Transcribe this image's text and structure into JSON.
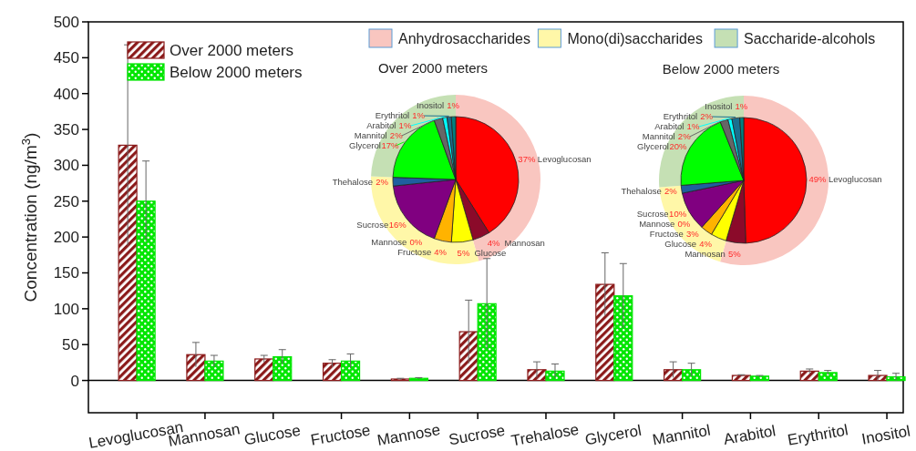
{
  "chart_data": [
    {
      "type": "bar",
      "ylabel": "Concentration (ng/m$^{3}$)",
      "categories": [
        "Levoglucosan",
        "Mannosan",
        "Glucose",
        "Fructose",
        "Mannose",
        "Sucrose",
        "Trehalose",
        "Glycerol",
        "Mannitol",
        "Arabitol",
        "Erythritol",
        "Inositol"
      ],
      "series": [
        {
          "name": "Over 2000 meters",
          "color": "#8b1a1a",
          "values": [
            328,
            36,
            30,
            24,
            2,
            68,
            15,
            134,
            15,
            7,
            13,
            7
          ],
          "errors": [
            140,
            17,
            5,
            5,
            1,
            44,
            11,
            44,
            11,
            1,
            3,
            7
          ]
        },
        {
          "name": "Below 2000 meters",
          "color": "#00e600",
          "values": [
            250,
            27,
            33,
            27,
            3,
            107,
            13,
            118,
            15,
            6,
            11,
            5
          ],
          "errors": [
            56,
            8,
            10,
            10,
            1,
            63,
            10,
            45,
            9,
            1,
            3,
            5
          ]
        }
      ],
      "ylim": [
        -45,
        500
      ],
      "yticks": [
        0,
        50,
        100,
        150,
        200,
        250,
        300,
        350,
        400,
        450,
        500
      ],
      "legend": "top left"
    },
    {
      "type": "donut",
      "categories": [
        "Anhydrosaccharides",
        "Mono(di)saccharides",
        "Saccharide-alcohols"
      ],
      "values": [
        45.6,
        30,
        24.4
      ],
      "colors": [
        "#f9c6c0",
        "#fff7a8",
        "#c5e0b4"
      ],
      "legend": "top"
    },
    {
      "type": "pie",
      "title": "Over 2000 meters",
      "categories": [
        "Levoglucosan",
        "Mannosan",
        "Glucose",
        "Fructose",
        "Mannose",
        "Sucrose",
        "Thehalose",
        "Glycerol",
        "Mannitol",
        "Arabitol",
        "Erythritol",
        "Inositol"
      ],
      "values": [
        37,
        4,
        5,
        4,
        0,
        16,
        2,
        17,
        2,
        1,
        1,
        1
      ],
      "value_labels": [
        "37%",
        "4%",
        "5%",
        "4%",
        "0%",
        "16%",
        "2%",
        "17%",
        "2%",
        "1%",
        "1%",
        "1%"
      ],
      "colors": [
        "#ff0000",
        "#8b0a2a",
        "#ffff00",
        "#ffb300",
        null,
        "#800080",
        "#1f5f9f",
        "#00ff00",
        "#666666",
        "#00ffff",
        "#1a6f8f",
        "#008080"
      ]
    },
    {
      "type": "donut",
      "categories": [
        null,
        null,
        null
      ],
      "values": [
        54.5,
        19.2,
        26.3
      ],
      "colors": [
        "#f9c6c0",
        "#fff7a8",
        "#c5e0b4"
      ]
    },
    {
      "type": "pie",
      "title": "Below 2000 meters",
      "categories": [
        "Levoglucosan",
        "Mannosan",
        "Glucose",
        "Fructose",
        "Mannose",
        "Sucrose",
        "Thehalose",
        "Glycerol",
        "Mannitol",
        "Arabitol",
        "Erythritol",
        "Inositol"
      ],
      "values": [
        49,
        5,
        4,
        3,
        0,
        10,
        2,
        20,
        2,
        1,
        2,
        1
      ],
      "value_labels": [
        "49%",
        "5%",
        "4%",
        "3%",
        "0%",
        "10%",
        "2%",
        "20%",
        "2%",
        "1%",
        "2%",
        "1%"
      ],
      "colors": [
        "#ff0000",
        "#8b0a2a",
        "#ffff00",
        "#ffb300",
        null,
        "#800080",
        "#1f5f9f",
        "#00ff00",
        "#666666",
        "#00ffff",
        "#1a6f8f",
        "#008080"
      ]
    }
  ]
}
